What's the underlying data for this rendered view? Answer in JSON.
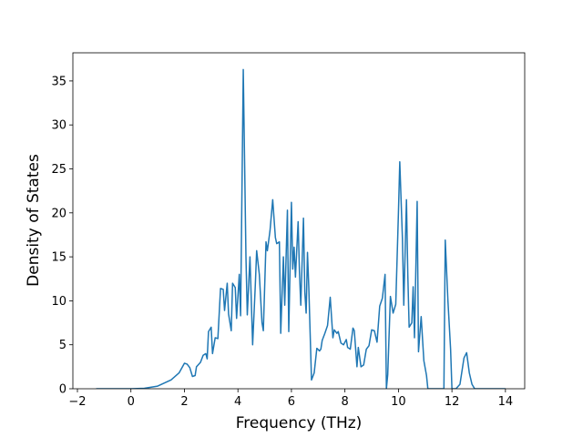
{
  "chart_data": {
    "type": "line",
    "xlabel": "Frequency (THz)",
    "ylabel": "Density of States",
    "color": "#1f77b4",
    "x": [
      -1.3,
      0,
      0.5,
      1,
      1.5,
      1.8,
      2.0,
      2.1,
      2.2,
      2.3,
      2.4,
      2.45,
      2.6,
      2.7,
      2.8,
      2.85,
      2.9,
      3.0,
      3.05,
      3.15,
      3.25,
      3.35,
      3.45,
      3.5,
      3.6,
      3.65,
      3.75,
      3.8,
      3.9,
      3.95,
      4.05,
      4.1,
      4.2,
      4.3,
      4.35,
      4.45,
      4.55,
      4.65,
      4.7,
      4.8,
      4.9,
      4.95,
      5.05,
      5.1,
      5.2,
      5.3,
      5.4,
      5.45,
      5.55,
      5.6,
      5.7,
      5.75,
      5.85,
      5.9,
      6.0,
      6.05,
      6.1,
      6.15,
      6.25,
      6.3,
      6.35,
      6.45,
      6.5,
      6.55,
      6.6,
      6.65,
      6.75,
      6.85,
      6.95,
      7.05,
      7.1,
      7.15,
      7.25,
      7.35,
      7.45,
      7.55,
      7.6,
      7.7,
      7.75,
      7.85,
      7.95,
      8.05,
      8.1,
      8.2,
      8.3,
      8.35,
      8.45,
      8.5,
      8.6,
      8.7,
      8.8,
      8.9,
      9.0,
      9.1,
      9.2,
      9.3,
      9.4,
      9.5,
      9.55,
      9.6,
      9.7,
      9.8,
      9.9,
      10.0,
      10.05,
      10.15,
      10.2,
      10.3,
      10.35,
      10.4,
      10.5,
      10.55,
      10.6,
      10.7,
      10.75,
      10.85,
      10.95,
      11.05,
      11.1,
      11.5,
      11.7,
      11.75,
      11.85,
      11.95,
      12.0,
      12.15,
      12.3,
      12.45,
      12.55,
      12.65,
      12.75,
      12.85,
      14.0
    ],
    "values": [
      0,
      0,
      0.05,
      0.3,
      1.0,
      1.8,
      2.9,
      2.8,
      2.4,
      1.4,
      1.5,
      2.5,
      3.0,
      3.8,
      4.0,
      3.4,
      6.5,
      7.0,
      4.0,
      5.8,
      5.7,
      11.4,
      11.3,
      8.9,
      12.0,
      8.5,
      6.6,
      12.0,
      11.5,
      8.0,
      13.0,
      8.3,
      36.3,
      15,
      8.4,
      15,
      5.0,
      11.8,
      15.7,
      13,
      7.5,
      6.6,
      16.7,
      15.7,
      18,
      21.5,
      17.2,
      16.5,
      16.7,
      6.3,
      15,
      9.5,
      20.3,
      6.5,
      21.2,
      13.6,
      16.1,
      12.7,
      19,
      13.3,
      9.5,
      19.4,
      11,
      8.6,
      15.5,
      11.5,
      1.0,
      1.8,
      4.6,
      4.3,
      4.5,
      5.5,
      6.3,
      7.2,
      10.4,
      5.8,
      6.7,
      6.3,
      6.5,
      5.2,
      5.0,
      5.6,
      4.7,
      4.5,
      6.9,
      6.6,
      2.5,
      4.7,
      2.5,
      2.7,
      4.5,
      4.9,
      6.7,
      6.6,
      5.3,
      9.4,
      10.3,
      13,
      0,
      1.6,
      10.5,
      8.6,
      9.6,
      20,
      25.8,
      17,
      9.5,
      21.5,
      13,
      7,
      7.5,
      11.6,
      5.8,
      21.3,
      4.2,
      8.2,
      3.2,
      1.5,
      0,
      0,
      0,
      16.9,
      10,
      4.5,
      0,
      0,
      0.5,
      3.5,
      4.1,
      1.8,
      0.5,
      0,
      0
    ],
    "xlim": [
      -2.17,
      14.72
    ],
    "ylim": [
      0,
      38.2
    ],
    "xticks": [
      {
        "value": -2,
        "label": "−2"
      },
      0,
      2,
      4,
      6,
      8,
      10,
      12,
      14
    ],
    "yticks": [
      0,
      5,
      10,
      15,
      20,
      25,
      30,
      35
    ]
  }
}
